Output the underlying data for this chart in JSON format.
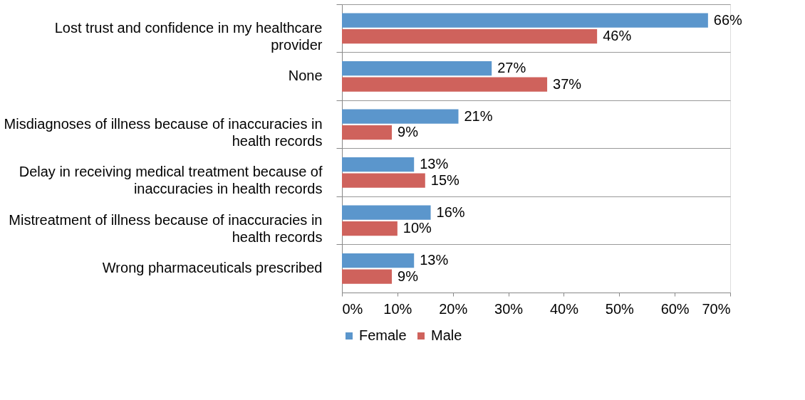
{
  "chart_data": {
    "type": "bar",
    "orientation": "horizontal",
    "categories": [
      "Lost trust and confidence in my healthcare provider",
      "None",
      "Misdiagnoses of illness because of inaccuracies in health records",
      "Delay in receiving medical treatment because of inaccuracies in health records",
      "Mistreatment of illness because of inaccuracies in health records",
      "Wrong pharmaceuticals prescribed"
    ],
    "series": [
      {
        "name": "Female",
        "color": "#5b96cc",
        "values": [
          66,
          27,
          21,
          13,
          16,
          13
        ],
        "value_labels": [
          "66%",
          "27%",
          "21%",
          "13%",
          "16%",
          "13%"
        ]
      },
      {
        "name": "Male",
        "color": "#cf625c",
        "values": [
          46,
          37,
          9,
          15,
          10,
          9
        ],
        "value_labels": [
          "46%",
          "37%",
          "9%",
          "15%",
          "10%",
          "9%"
        ]
      }
    ],
    "xlim": [
      0,
      70
    ],
    "xticks": [
      {
        "value": 0,
        "label": "0%"
      },
      {
        "value": 10,
        "label": "10%"
      },
      {
        "value": 20,
        "label": "20%"
      },
      {
        "value": 30,
        "label": "30%"
      },
      {
        "value": 40,
        "label": "40%"
      },
      {
        "value": 50,
        "label": "50%"
      },
      {
        "value": 60,
        "label": "60%"
      },
      {
        "value": 70,
        "label": "70%"
      }
    ],
    "grid": "y",
    "legend": "bottom"
  }
}
